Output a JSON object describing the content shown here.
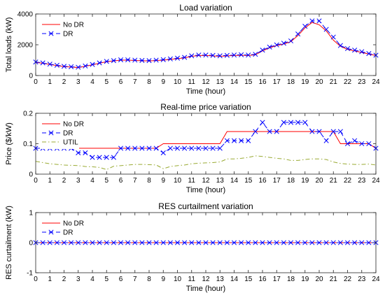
{
  "chart_data": [
    {
      "type": "line",
      "title": "Load variation",
      "xlabel": "Time (hour)",
      "ylabel": "Total loads (kW)",
      "xlim": [
        0,
        24
      ],
      "ylim": [
        0,
        4000
      ],
      "xticks": [
        0,
        1,
        2,
        3,
        4,
        5,
        6,
        7,
        8,
        9,
        10,
        11,
        12,
        13,
        14,
        15,
        16,
        17,
        18,
        19,
        20,
        21,
        22,
        23,
        24
      ],
      "yticks": [
        0,
        2000,
        4000
      ],
      "ytick_labels": [
        "0",
        "2000",
        "4000"
      ],
      "grid": false,
      "legend": "top-left",
      "colors": {
        "No DR": "#ff0000",
        "DR": "#0000ff"
      },
      "series": [
        {
          "name": "No DR",
          "style": "solid",
          "x": [
            0,
            0.5,
            1,
            1.5,
            2,
            2.5,
            3,
            3.5,
            4,
            4.5,
            5,
            5.5,
            6,
            6.5,
            7,
            7.5,
            8,
            8.5,
            9,
            9.5,
            10,
            10.5,
            11,
            11.5,
            12,
            12.5,
            13,
            13.5,
            14,
            14.5,
            15,
            15.5,
            16,
            16.5,
            17,
            17.5,
            18,
            18.5,
            19,
            19.5,
            20,
            20.5,
            21,
            21.5,
            22,
            22.5,
            23,
            23.5,
            24
          ],
          "values": [
            850,
            800,
            720,
            650,
            580,
            550,
            520,
            600,
            700,
            800,
            900,
            950,
            1000,
            1000,
            980,
            960,
            950,
            980,
            1000,
            1050,
            1100,
            1150,
            1250,
            1300,
            1300,
            1280,
            1250,
            1280,
            1300,
            1320,
            1300,
            1350,
            1600,
            1800,
            1950,
            2050,
            2200,
            2600,
            3100,
            3450,
            3300,
            2900,
            2300,
            1900,
            1700,
            1600,
            1500,
            1400,
            1300
          ]
        },
        {
          "name": "DR",
          "style": "dashed-x",
          "x": [
            0,
            0.5,
            1,
            1.5,
            2,
            2.5,
            3,
            3.5,
            4,
            4.5,
            5,
            5.5,
            6,
            6.5,
            7,
            7.5,
            8,
            8.5,
            9,
            9.5,
            10,
            10.5,
            11,
            11.5,
            12,
            12.5,
            13,
            13.5,
            14,
            14.5,
            15,
            15.5,
            16,
            16.5,
            17,
            17.5,
            18,
            18.5,
            19,
            19.5,
            20,
            20.5,
            21,
            21.5,
            22,
            22.5,
            23,
            23.5,
            24
          ],
          "values": [
            880,
            820,
            740,
            670,
            600,
            570,
            540,
            620,
            720,
            820,
            920,
            970,
            1020,
            1020,
            1000,
            980,
            970,
            1000,
            1030,
            1080,
            1130,
            1180,
            1280,
            1330,
            1330,
            1310,
            1280,
            1310,
            1330,
            1350,
            1330,
            1380,
            1650,
            1850,
            1990,
            2100,
            2250,
            2700,
            3200,
            3550,
            3550,
            3000,
            2500,
            1950,
            1750,
            1650,
            1550,
            1430,
            1320
          ]
        }
      ]
    },
    {
      "type": "line",
      "title": "Real-time price variation",
      "xlabel": "Time (hour)",
      "ylabel": "Price ($/kW)",
      "xlim": [
        0,
        24
      ],
      "ylim": [
        0,
        0.2
      ],
      "xticks": [
        0,
        1,
        2,
        3,
        4,
        5,
        6,
        7,
        8,
        9,
        10,
        11,
        12,
        13,
        14,
        15,
        16,
        17,
        18,
        19,
        20,
        21,
        22,
        23,
        24
      ],
      "yticks": [
        0,
        0.1,
        0.2
      ],
      "ytick_labels": [
        "0",
        "0.1",
        "0.2"
      ],
      "grid": false,
      "legend": "top-left",
      "colors": {
        "No DR": "#ff0000",
        "DR": "#0000ff",
        "UTIL": "#99aa33"
      },
      "series": [
        {
          "name": "No DR",
          "style": "solid",
          "x": [
            0,
            0.5,
            1,
            1.5,
            2,
            2.5,
            3,
            3.5,
            4,
            4.5,
            5,
            5.5,
            6,
            6.5,
            7,
            7.5,
            8,
            8.5,
            9,
            9.5,
            10,
            10.5,
            11,
            11.5,
            12,
            12.5,
            13,
            13.5,
            14,
            14.5,
            15,
            15.5,
            16,
            16.5,
            17,
            17.5,
            18,
            18.5,
            19,
            19.5,
            20,
            20.5,
            21,
            21.5,
            22,
            22.5,
            23,
            23.5,
            24
          ],
          "values": [
            0.085,
            0.085,
            0.085,
            0.085,
            0.085,
            0.085,
            0.085,
            0.085,
            0.085,
            0.085,
            0.085,
            0.085,
            0.085,
            0.085,
            0.085,
            0.085,
            0.085,
            0.085,
            0.1,
            0.1,
            0.1,
            0.1,
            0.1,
            0.1,
            0.1,
            0.1,
            0.1,
            0.14,
            0.14,
            0.14,
            0.14,
            0.14,
            0.14,
            0.14,
            0.14,
            0.14,
            0.14,
            0.14,
            0.14,
            0.14,
            0.14,
            0.14,
            0.14,
            0.1,
            0.1,
            0.1,
            0.1,
            0.1,
            0.085
          ]
        },
        {
          "name": "DR",
          "style": "dashed-x",
          "x": [
            0,
            0.5,
            1,
            1.5,
            2,
            2.5,
            3,
            3.5,
            4,
            4.5,
            5,
            5.5,
            6,
            6.5,
            7,
            7.5,
            8,
            8.5,
            9,
            9.5,
            10,
            10.5,
            11,
            11.5,
            12,
            12.5,
            13,
            13.5,
            14,
            14.5,
            15,
            15.5,
            16,
            16.5,
            17,
            17.5,
            18,
            18.5,
            19,
            19.5,
            20,
            20.5,
            21,
            21.5,
            22,
            22.5,
            23,
            23.5,
            24
          ],
          "values": [
            0.085,
            0.085,
            0.085,
            0.085,
            0.085,
            0.085,
            0.07,
            0.07,
            0.055,
            0.055,
            0.055,
            0.055,
            0.085,
            0.085,
            0.085,
            0.085,
            0.085,
            0.085,
            0.07,
            0.085,
            0.085,
            0.085,
            0.085,
            0.085,
            0.085,
            0.085,
            0.085,
            0.11,
            0.11,
            0.11,
            0.11,
            0.14,
            0.17,
            0.14,
            0.14,
            0.17,
            0.17,
            0.17,
            0.17,
            0.14,
            0.14,
            0.11,
            0.14,
            0.14,
            0.1,
            0.11,
            0.1,
            0.1,
            0.085
          ]
        },
        {
          "name": "UTIL",
          "style": "dashdot",
          "x": [
            0,
            0.5,
            1,
            1.5,
            2,
            2.5,
            3,
            3.5,
            4,
            4.5,
            5,
            5.5,
            6,
            6.5,
            7,
            7.5,
            8,
            8.5,
            9,
            9.5,
            10,
            10.5,
            11,
            11.5,
            12,
            12.5,
            13,
            13.5,
            14,
            14.5,
            15,
            15.5,
            16,
            16.5,
            17,
            17.5,
            18,
            18.5,
            19,
            19.5,
            20,
            20.5,
            21,
            21.5,
            22,
            22.5,
            23,
            23.5,
            24
          ],
          "values": [
            0.042,
            0.038,
            0.034,
            0.032,
            0.03,
            0.029,
            0.028,
            0.025,
            0.024,
            0.022,
            0.015,
            0.026,
            0.028,
            0.03,
            0.032,
            0.032,
            0.031,
            0.03,
            0.018,
            0.025,
            0.028,
            0.03,
            0.034,
            0.036,
            0.037,
            0.038,
            0.04,
            0.05,
            0.05,
            0.052,
            0.055,
            0.06,
            0.058,
            0.055,
            0.052,
            0.05,
            0.045,
            0.045,
            0.048,
            0.05,
            0.05,
            0.048,
            0.04,
            0.035,
            0.033,
            0.032,
            0.032,
            0.033,
            0.03
          ]
        }
      ]
    },
    {
      "type": "line",
      "title": "RES curtailment variation",
      "xlabel": "Time (hour)",
      "ylabel": "RES curtailment (kW)",
      "xlim": [
        0,
        24
      ],
      "ylim": [
        -1,
        1
      ],
      "xticks": [
        0,
        1,
        2,
        3,
        4,
        5,
        6,
        7,
        8,
        9,
        10,
        11,
        12,
        13,
        14,
        15,
        16,
        17,
        18,
        19,
        20,
        21,
        22,
        23,
        24
      ],
      "yticks": [
        -1,
        0,
        1
      ],
      "ytick_labels": [
        "-1",
        "0",
        "1"
      ],
      "grid": false,
      "legend": "top-left",
      "colors": {
        "No DR": "#ff0000",
        "DR": "#0000ff"
      },
      "series": [
        {
          "name": "No DR",
          "style": "solid",
          "x": [
            0,
            0.5,
            1,
            1.5,
            2,
            2.5,
            3,
            3.5,
            4,
            4.5,
            5,
            5.5,
            6,
            6.5,
            7,
            7.5,
            8,
            8.5,
            9,
            9.5,
            10,
            10.5,
            11,
            11.5,
            12,
            12.5,
            13,
            13.5,
            14,
            14.5,
            15,
            15.5,
            16,
            16.5,
            17,
            17.5,
            18,
            18.5,
            19,
            19.5,
            20,
            20.5,
            21,
            21.5,
            22,
            22.5,
            23,
            23.5,
            24
          ],
          "values": [
            0,
            0,
            0,
            0,
            0,
            0,
            0,
            0,
            0,
            0,
            0,
            0,
            0,
            0,
            0,
            0,
            0,
            0,
            0,
            0,
            0,
            0,
            0,
            0,
            0,
            0,
            0,
            0,
            0,
            0,
            0,
            0,
            0,
            0,
            0,
            0,
            0,
            0,
            0,
            0,
            0,
            0,
            0,
            0,
            0,
            0,
            0,
            0,
            0
          ]
        },
        {
          "name": "DR",
          "style": "dashed-x",
          "x": [
            0,
            0.5,
            1,
            1.5,
            2,
            2.5,
            3,
            3.5,
            4,
            4.5,
            5,
            5.5,
            6,
            6.5,
            7,
            7.5,
            8,
            8.5,
            9,
            9.5,
            10,
            10.5,
            11,
            11.5,
            12,
            12.5,
            13,
            13.5,
            14,
            14.5,
            15,
            15.5,
            16,
            16.5,
            17,
            17.5,
            18,
            18.5,
            19,
            19.5,
            20,
            20.5,
            21,
            21.5,
            22,
            22.5,
            23,
            23.5,
            24
          ],
          "values": [
            0,
            0,
            0,
            0,
            0,
            0,
            0,
            0,
            0,
            0,
            0,
            0,
            0,
            0,
            0,
            0,
            0,
            0,
            0,
            0,
            0,
            0,
            0,
            0,
            0,
            0,
            0,
            0,
            0,
            0,
            0,
            0,
            0,
            0,
            0,
            0,
            0,
            0,
            0,
            0,
            0,
            0,
            0,
            0,
            0,
            0,
            0,
            0,
            0
          ]
        }
      ]
    }
  ]
}
